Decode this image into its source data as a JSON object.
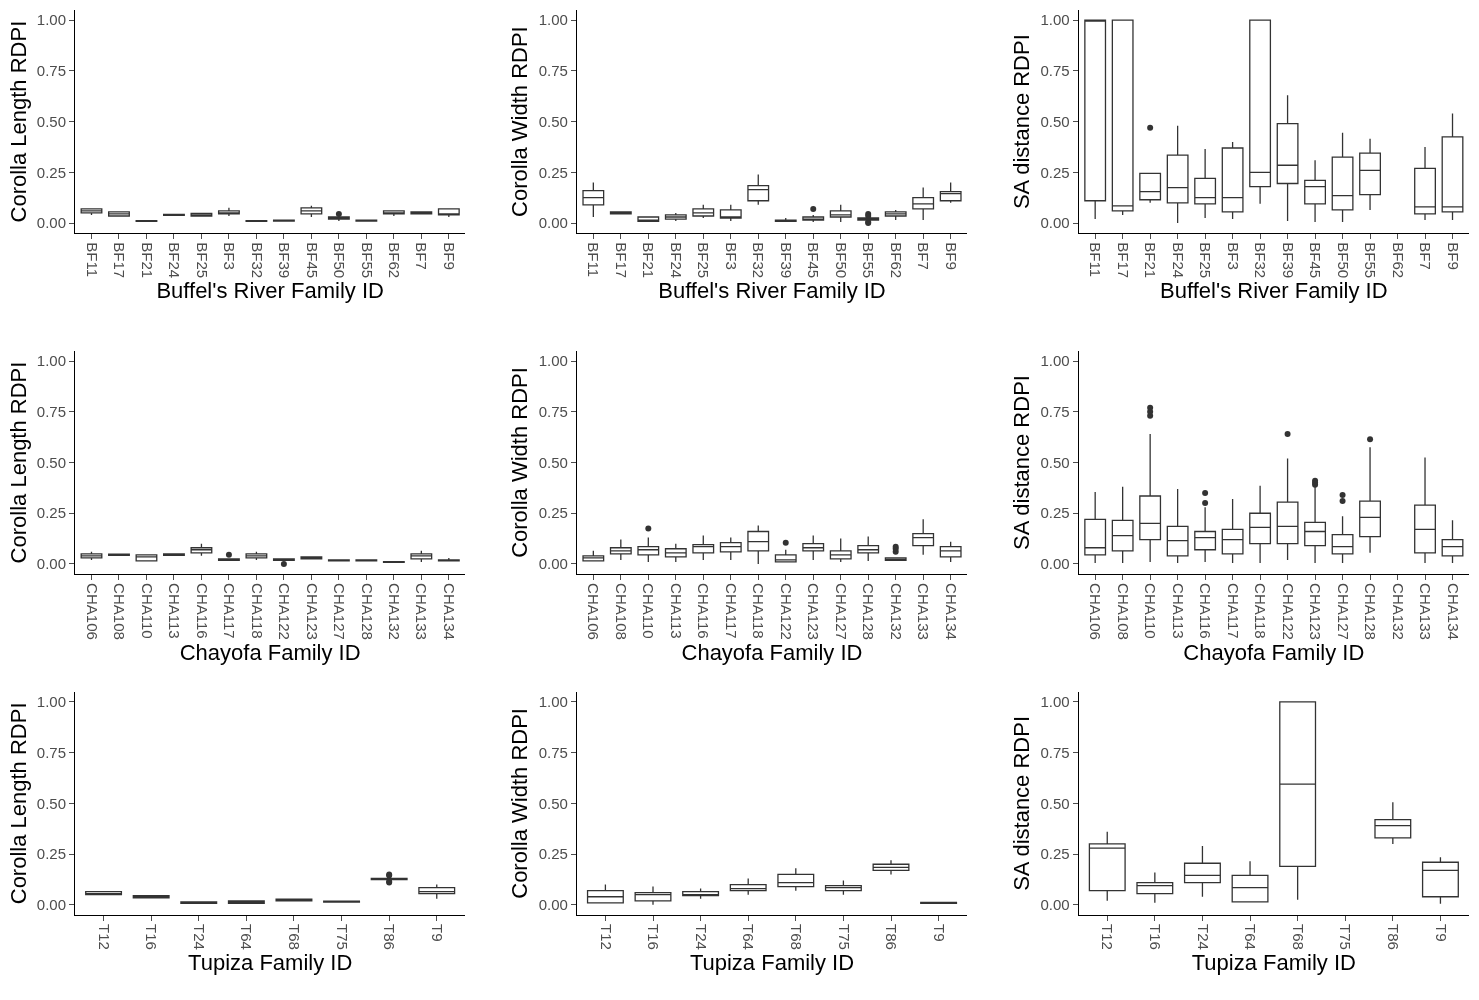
{
  "chart_data": [
    {
      "type": "box",
      "xlabel": "Buffel's River Family ID",
      "ylabel": "Corolla Length RDPI",
      "ylim": [
        -0.05,
        1.05
      ],
      "yticks": [
        {
          "value": 0,
          "label": "0.00"
        },
        {
          "value": 0.25,
          "label": "0.25"
        },
        {
          "value": 0.5,
          "label": "0.50"
        },
        {
          "value": 0.75,
          "label": "0.75"
        },
        {
          "value": 1,
          "label": "1.00"
        }
      ],
      "categories": [
        "BF11",
        "BF17",
        "BF21",
        "BF24",
        "BF25",
        "BF3",
        "BF32",
        "BF39",
        "BF45",
        "BF50",
        "BF55",
        "BF62",
        "BF7",
        "BF9"
      ],
      "boxes": [
        {
          "low": 0.04,
          "q1": 0.05,
          "median": 0.06,
          "q3": 0.07,
          "high": 0.07
        },
        {
          "low": 0.035,
          "q1": 0.035,
          "median": 0.045,
          "q3": 0.055,
          "high": 0.055
        },
        {
          "low": 0.008,
          "q1": 0.008,
          "median": 0.01,
          "q3": 0.012,
          "high": 0.012
        },
        {
          "low": 0.038,
          "q1": 0.038,
          "median": 0.04,
          "q3": 0.043,
          "high": 0.043
        },
        {
          "low": 0.035,
          "q1": 0.035,
          "median": 0.04,
          "q3": 0.048,
          "high": 0.048
        },
        {
          "low": 0.035,
          "q1": 0.045,
          "median": 0.05,
          "q3": 0.06,
          "high": 0.075
        },
        {
          "low": 0.008,
          "q1": 0.008,
          "median": 0.01,
          "q3": 0.012,
          "high": 0.012
        },
        {
          "low": 0.01,
          "q1": 0.01,
          "median": 0.012,
          "q3": 0.015,
          "high": 0.015
        },
        {
          "low": 0.03,
          "q1": 0.045,
          "median": 0.06,
          "q3": 0.075,
          "high": 0.085
        },
        {
          "low": 0.01,
          "q1": 0.02,
          "median": 0.025,
          "q3": 0.03,
          "high": 0.04,
          "outliers": [
            0.045
          ]
        },
        {
          "low": 0.01,
          "q1": 0.01,
          "median": 0.012,
          "q3": 0.015,
          "high": 0.015
        },
        {
          "low": 0.035,
          "q1": 0.045,
          "median": 0.05,
          "q3": 0.06,
          "high": 0.06
        },
        {
          "low": 0.045,
          "q1": 0.045,
          "median": 0.05,
          "q3": 0.055,
          "high": 0.055
        },
        {
          "low": 0.03,
          "q1": 0.04,
          "median": 0.045,
          "q3": 0.07,
          "high": 0.07
        }
      ]
    },
    {
      "type": "box",
      "xlabel": "Buffel's River Family ID",
      "ylabel": "Corolla Width RDPI",
      "ylim": [
        -0.05,
        1.05
      ],
      "yticks": [
        {
          "value": 0,
          "label": "0.00"
        },
        {
          "value": 0.25,
          "label": "0.25"
        },
        {
          "value": 0.5,
          "label": "0.50"
        },
        {
          "value": 0.75,
          "label": "0.75"
        },
        {
          "value": 1,
          "label": "1.00"
        }
      ],
      "categories": [
        "BF11",
        "BF17",
        "BF21",
        "BF24",
        "BF25",
        "BF3",
        "BF32",
        "BF39",
        "BF45",
        "BF50",
        "BF55",
        "BF62",
        "BF7",
        "BF9"
      ],
      "boxes": [
        {
          "low": 0.03,
          "q1": 0.09,
          "median": 0.125,
          "q3": 0.16,
          "high": 0.2
        },
        {
          "low": 0.045,
          "q1": 0.045,
          "median": 0.05,
          "q3": 0.055,
          "high": 0.055
        },
        {
          "low": 0.008,
          "q1": 0.008,
          "median": 0.015,
          "q3": 0.03,
          "high": 0.03
        },
        {
          "low": 0.01,
          "q1": 0.02,
          "median": 0.03,
          "q3": 0.04,
          "high": 0.05
        },
        {
          "low": 0.025,
          "q1": 0.035,
          "median": 0.05,
          "q3": 0.07,
          "high": 0.09
        },
        {
          "low": 0.01,
          "q1": 0.025,
          "median": 0.03,
          "q3": 0.065,
          "high": 0.09
        },
        {
          "low": 0.09,
          "q1": 0.11,
          "median": 0.165,
          "q3": 0.185,
          "high": 0.24
        },
        {
          "low": 0.008,
          "q1": 0.008,
          "median": 0.01,
          "q3": 0.015,
          "high": 0.025
        },
        {
          "low": 0.005,
          "q1": 0.015,
          "median": 0.02,
          "q3": 0.03,
          "high": 0.04,
          "outliers": [
            0.07
          ]
        },
        {
          "low": 0.005,
          "q1": 0.03,
          "median": 0.04,
          "q3": 0.06,
          "high": 0.09
        },
        {
          "low": 0.015,
          "q1": 0.015,
          "median": 0.02,
          "q3": 0.025,
          "high": 0.025,
          "outliers": [
            0.045,
            0.035,
            0.005,
            0
          ]
        },
        {
          "low": 0.015,
          "q1": 0.035,
          "median": 0.045,
          "q3": 0.055,
          "high": 0.065
        },
        {
          "low": 0.015,
          "q1": 0.07,
          "median": 0.095,
          "q3": 0.125,
          "high": 0.175
        },
        {
          "low": 0.1,
          "q1": 0.11,
          "median": 0.145,
          "q3": 0.155,
          "high": 0.2
        }
      ]
    },
    {
      "type": "box",
      "xlabel": "Buffel's River Family ID",
      "ylabel": "SA distance RDPI",
      "ylim": [
        -0.05,
        1.05
      ],
      "yticks": [
        {
          "value": 0,
          "label": "0.00"
        },
        {
          "value": 0.25,
          "label": "0.25"
        },
        {
          "value": 0.5,
          "label": "0.50"
        },
        {
          "value": 0.75,
          "label": "0.75"
        },
        {
          "value": 1,
          "label": "1.00"
        }
      ],
      "categories": [
        "BF11",
        "BF17",
        "BF21",
        "BF24",
        "BF25",
        "BF3",
        "BF32",
        "BF39",
        "BF45",
        "BF50",
        "BF55",
        "BF62",
        "BF7",
        "BF9"
      ],
      "boxes": [
        {
          "low": 0.02,
          "q1": 0.11,
          "median": 1.0,
          "q3": 1.0,
          "high": 1.0
        },
        {
          "low": 0.04,
          "q1": 0.06,
          "median": 0.085,
          "q3": 1.0,
          "high": 1.0
        },
        {
          "low": 0.1,
          "q1": 0.115,
          "median": 0.155,
          "q3": 0.245,
          "high": 0.245,
          "outliers": [
            0.47
          ]
        },
        {
          "low": 0.0,
          "q1": 0.1,
          "median": 0.175,
          "q3": 0.335,
          "high": 0.48
        },
        {
          "low": 0.025,
          "q1": 0.095,
          "median": 0.125,
          "q3": 0.22,
          "high": 0.365
        },
        {
          "low": 0.02,
          "q1": 0.055,
          "median": 0.125,
          "q3": 0.37,
          "high": 0.4
        },
        {
          "low": 0.095,
          "q1": 0.18,
          "median": 0.25,
          "q3": 1.0,
          "high": 1.0
        },
        {
          "low": 0.01,
          "q1": 0.195,
          "median": 0.285,
          "q3": 0.49,
          "high": 0.63
        },
        {
          "low": 0.005,
          "q1": 0.095,
          "median": 0.18,
          "q3": 0.21,
          "high": 0.31
        },
        {
          "low": 0.005,
          "q1": 0.065,
          "median": 0.135,
          "q3": 0.325,
          "high": 0.445
        },
        {
          "low": 0.065,
          "q1": 0.14,
          "median": 0.26,
          "q3": 0.345,
          "high": 0.415
        },
        null,
        {
          "low": 0.015,
          "q1": 0.045,
          "median": 0.08,
          "q3": 0.27,
          "high": 0.375
        },
        {
          "low": 0.015,
          "q1": 0.055,
          "median": 0.08,
          "q3": 0.425,
          "high": 0.54
        }
      ]
    },
    {
      "type": "box",
      "xlabel": "Chayofa Family ID",
      "ylabel": "Corolla Length RDPI",
      "ylim": [
        -0.05,
        1.05
      ],
      "yticks": [
        {
          "value": 0,
          "label": "0.00"
        },
        {
          "value": 0.25,
          "label": "0.25"
        },
        {
          "value": 0.5,
          "label": "0.50"
        },
        {
          "value": 0.75,
          "label": "0.75"
        },
        {
          "value": 1,
          "label": "1.00"
        }
      ],
      "categories": [
        "CHA106",
        "CHA108",
        "CHA110",
        "CHA113",
        "CHA116",
        "CHA117",
        "CHA118",
        "CHA122",
        "CHA123",
        "CHA127",
        "CHA128",
        "CHA132",
        "CHA133",
        "CHA134"
      ],
      "boxes": [
        {
          "low": 0.02,
          "q1": 0.03,
          "median": 0.04,
          "q3": 0.05,
          "high": 0.06
        },
        {
          "low": 0.042,
          "q1": 0.042,
          "median": 0.045,
          "q3": 0.048,
          "high": 0.048
        },
        {
          "low": 0.015,
          "q1": 0.015,
          "median": 0.035,
          "q3": 0.045,
          "high": 0.045
        },
        {
          "low": 0.042,
          "q1": 0.042,
          "median": 0.045,
          "q3": 0.05,
          "high": 0.05
        },
        {
          "low": 0.04,
          "q1": 0.055,
          "median": 0.07,
          "q3": 0.08,
          "high": 0.1
        },
        {
          "low": 0.018,
          "q1": 0.018,
          "median": 0.02,
          "q3": 0.025,
          "high": 0.025,
          "outliers": [
            0.045
          ]
        },
        {
          "low": 0.02,
          "q1": 0.03,
          "median": 0.04,
          "q3": 0.05,
          "high": 0.06
        },
        {
          "low": 0.018,
          "q1": 0.018,
          "median": 0.02,
          "q3": 0.025,
          "high": 0.025,
          "outliers": [
            0.0
          ]
        },
        {
          "low": 0.025,
          "q1": 0.025,
          "median": 0.03,
          "q3": 0.035,
          "high": 0.035
        },
        {
          "low": 0.015,
          "q1": 0.015,
          "median": 0.018,
          "q3": 0.02,
          "high": 0.02
        },
        {
          "low": 0.015,
          "q1": 0.015,
          "median": 0.018,
          "q3": 0.02,
          "high": 0.02
        },
        {
          "low": 0.008,
          "q1": 0.008,
          "median": 0.01,
          "q3": 0.012,
          "high": 0.012
        },
        {
          "low": 0.01,
          "q1": 0.025,
          "median": 0.04,
          "q3": 0.05,
          "high": 0.065
        },
        {
          "low": 0.015,
          "q1": 0.015,
          "median": 0.018,
          "q3": 0.02,
          "high": 0.03
        }
      ]
    },
    {
      "type": "box",
      "xlabel": "Chayofa Family ID",
      "ylabel": "Corolla Width RDPI",
      "ylim": [
        -0.05,
        1.05
      ],
      "yticks": [
        {
          "value": 0,
          "label": "0.00"
        },
        {
          "value": 0.25,
          "label": "0.25"
        },
        {
          "value": 0.5,
          "label": "0.50"
        },
        {
          "value": 0.75,
          "label": "0.75"
        },
        {
          "value": 1,
          "label": "1.00"
        }
      ],
      "categories": [
        "CHA106",
        "CHA108",
        "CHA110",
        "CHA113",
        "CHA116",
        "CHA117",
        "CHA118",
        "CHA122",
        "CHA123",
        "CHA127",
        "CHA128",
        "CHA132",
        "CHA133",
        "CHA134"
      ],
      "boxes": [
        {
          "low": 0.015,
          "q1": 0.015,
          "median": 0.03,
          "q3": 0.04,
          "high": 0.065
        },
        {
          "low": 0.02,
          "q1": 0.05,
          "median": 0.065,
          "q3": 0.08,
          "high": 0.12
        },
        {
          "low": 0.01,
          "q1": 0.045,
          "median": 0.07,
          "q3": 0.085,
          "high": 0.13,
          "outliers": [
            0.175
          ]
        },
        {
          "low": 0.01,
          "q1": 0.035,
          "median": 0.055,
          "q3": 0.075,
          "high": 0.1
        },
        {
          "low": 0.02,
          "q1": 0.055,
          "median": 0.085,
          "q3": 0.095,
          "high": 0.14
        },
        {
          "low": 0.02,
          "q1": 0.06,
          "median": 0.085,
          "q3": 0.105,
          "high": 0.13
        },
        {
          "low": 0.0,
          "q1": 0.065,
          "median": 0.11,
          "q3": 0.16,
          "high": 0.19
        },
        {
          "low": 0.01,
          "q1": 0.01,
          "median": 0.02,
          "q3": 0.045,
          "high": 0.07,
          "outliers": [
            0.105
          ]
        },
        {
          "low": 0.02,
          "q1": 0.065,
          "median": 0.08,
          "q3": 0.1,
          "high": 0.14
        },
        {
          "low": 0.01,
          "q1": 0.025,
          "median": 0.045,
          "q3": 0.065,
          "high": 0.125
        },
        {
          "low": 0.015,
          "q1": 0.055,
          "median": 0.07,
          "q3": 0.09,
          "high": 0.135
        },
        {
          "low": 0.018,
          "q1": 0.018,
          "median": 0.022,
          "q3": 0.03,
          "high": 0.03,
          "outliers": [
            0.06,
            0.075,
            0.085
          ]
        },
        {
          "low": 0.045,
          "q1": 0.09,
          "median": 0.13,
          "q3": 0.15,
          "high": 0.22
        },
        {
          "low": 0.01,
          "q1": 0.035,
          "median": 0.065,
          "q3": 0.085,
          "high": 0.11
        }
      ]
    },
    {
      "type": "box",
      "xlabel": "Chayofa Family ID",
      "ylabel": "SA distance RDPI",
      "ylim": [
        -0.05,
        1.05
      ],
      "yticks": [
        {
          "value": 0,
          "label": "0.00"
        },
        {
          "value": 0.25,
          "label": "0.25"
        },
        {
          "value": 0.5,
          "label": "0.50"
        },
        {
          "value": 0.75,
          "label": "0.75"
        },
        {
          "value": 1,
          "label": "1.00"
        }
      ],
      "categories": [
        "CHA106",
        "CHA108",
        "CHA110",
        "CHA113",
        "CHA116",
        "CHA117",
        "CHA118",
        "CHA122",
        "CHA123",
        "CHA127",
        "CHA128",
        "CHA132",
        "CHA133",
        "CHA134"
      ],
      "boxes": [
        {
          "low": 0.005,
          "q1": 0.045,
          "median": 0.08,
          "q3": 0.22,
          "high": 0.355
        },
        {
          "low": 0.005,
          "q1": 0.065,
          "median": 0.14,
          "q3": 0.215,
          "high": 0.38
        },
        {
          "low": 0.01,
          "q1": 0.12,
          "median": 0.2,
          "q3": 0.335,
          "high": 0.64,
          "outliers": [
            0.73,
            0.75,
            0.77
          ]
        },
        {
          "low": 0.005,
          "q1": 0.04,
          "median": 0.115,
          "q3": 0.185,
          "high": 0.37
        },
        {
          "low": 0.01,
          "q1": 0.07,
          "median": 0.13,
          "q3": 0.16,
          "high": 0.28,
          "outliers": [
            0.3,
            0.35
          ]
        },
        {
          "low": 0.005,
          "q1": 0.05,
          "median": 0.12,
          "q3": 0.17,
          "high": 0.32
        },
        {
          "low": 0.005,
          "q1": 0.1,
          "median": 0.18,
          "q3": 0.25,
          "high": 0.385
        },
        {
          "low": 0.02,
          "q1": 0.1,
          "median": 0.185,
          "q3": 0.305,
          "high": 0.52,
          "outliers": [
            0.64
          ]
        },
        {
          "low": 0.005,
          "q1": 0.09,
          "median": 0.16,
          "q3": 0.205,
          "high": 0.38,
          "outliers": [
            0.39,
            0.4,
            0.41
          ]
        },
        {
          "low": 0.005,
          "q1": 0.05,
          "median": 0.085,
          "q3": 0.145,
          "high": 0.235,
          "outliers": [
            0.31,
            0.34
          ]
        },
        {
          "low": 0.055,
          "q1": 0.135,
          "median": 0.23,
          "q3": 0.31,
          "high": 0.575,
          "outliers": [
            0.615
          ]
        },
        null,
        {
          "low": 0.005,
          "q1": 0.055,
          "median": 0.17,
          "q3": 0.29,
          "high": 0.525
        },
        {
          "low": 0.005,
          "q1": 0.04,
          "median": 0.085,
          "q3": 0.12,
          "high": 0.215
        }
      ]
    },
    {
      "type": "box",
      "xlabel": "Tupiza Family ID",
      "ylabel": "Corolla Length RDPI",
      "ylim": [
        -0.05,
        1.05
      ],
      "yticks": [
        {
          "value": 0,
          "label": "0.00"
        },
        {
          "value": 0.25,
          "label": "0.25"
        },
        {
          "value": 0.5,
          "label": "0.50"
        },
        {
          "value": 0.75,
          "label": "0.75"
        },
        {
          "value": 1,
          "label": "1.00"
        }
      ],
      "categories": [
        "T12",
        "T16",
        "T24",
        "T64",
        "T68",
        "T75",
        "T86",
        "T9"
      ],
      "boxes": [
        {
          "low": 0.05,
          "q1": 0.05,
          "median": 0.055,
          "q3": 0.065,
          "high": 0.065
        },
        {
          "low": 0.035,
          "q1": 0.035,
          "median": 0.04,
          "q3": 0.045,
          "high": 0.045
        },
        {
          "low": 0.008,
          "q1": 0.008,
          "median": 0.01,
          "q3": 0.015,
          "high": 0.015
        },
        {
          "low": 0.008,
          "q1": 0.008,
          "median": 0.012,
          "q3": 0.02,
          "high": 0.02
        },
        {
          "low": 0.02,
          "q1": 0.02,
          "median": 0.025,
          "q3": 0.028,
          "high": 0.028
        },
        {
          "low": 0.013,
          "q1": 0.013,
          "median": 0.015,
          "q3": 0.018,
          "high": 0.018
        },
        {
          "low": 0.125,
          "q1": 0.125,
          "median": 0.13,
          "q3": 0.13,
          "high": 0.13,
          "outliers": [
            0.11,
            0.115,
            0.145,
            0.15
          ]
        },
        {
          "low": 0.03,
          "q1": 0.055,
          "median": 0.065,
          "q3": 0.085,
          "high": 0.1
        }
      ]
    },
    {
      "type": "box",
      "xlabel": "Tupiza Family ID",
      "ylabel": "Corolla Width RDPI",
      "ylim": [
        -0.05,
        1.05
      ],
      "yticks": [
        {
          "value": 0,
          "label": "0.00"
        },
        {
          "value": 0.25,
          "label": "0.25"
        },
        {
          "value": 0.5,
          "label": "0.50"
        },
        {
          "value": 0.75,
          "label": "0.75"
        },
        {
          "value": 1,
          "label": "1.00"
        }
      ],
      "categories": [
        "T12",
        "T16",
        "T24",
        "T64",
        "T68",
        "T75",
        "T86",
        "T9"
      ],
      "boxes": [
        {
          "low": 0.01,
          "q1": 0.01,
          "median": 0.04,
          "q3": 0.07,
          "high": 0.1
        },
        {
          "low": 0.0,
          "q1": 0.02,
          "median": 0.05,
          "q3": 0.06,
          "high": 0.09
        },
        {
          "low": 0.03,
          "q1": 0.045,
          "median": 0.05,
          "q3": 0.065,
          "high": 0.08
        },
        {
          "low": 0.05,
          "q1": 0.07,
          "median": 0.08,
          "q3": 0.1,
          "high": 0.13
        },
        {
          "low": 0.07,
          "q1": 0.09,
          "median": 0.11,
          "q3": 0.15,
          "high": 0.18
        },
        {
          "low": 0.05,
          "q1": 0.07,
          "median": 0.085,
          "q3": 0.095,
          "high": 0.12
        },
        {
          "low": 0.15,
          "q1": 0.17,
          "median": 0.185,
          "q3": 0.2,
          "high": 0.22
        },
        {
          "low": 0.008,
          "q1": 0.008,
          "median": 0.01,
          "q3": 0.012,
          "high": 0.012
        }
      ]
    },
    {
      "type": "box",
      "xlabel": "Tupiza Family ID",
      "ylabel": "SA distance RDPI",
      "ylim": [
        -0.05,
        1.05
      ],
      "yticks": [
        {
          "value": 0,
          "label": "0.00"
        },
        {
          "value": 0.25,
          "label": "0.25"
        },
        {
          "value": 0.5,
          "label": "0.50"
        },
        {
          "value": 0.75,
          "label": "0.75"
        },
        {
          "value": 1,
          "label": "1.00"
        }
      ],
      "categories": [
        "T12",
        "T16",
        "T24",
        "T64",
        "T68",
        "T75",
        "T86",
        "T9"
      ],
      "boxes": [
        {
          "low": 0.02,
          "q1": 0.07,
          "median": 0.28,
          "q3": 0.3,
          "high": 0.36
        },
        {
          "low": 0.01,
          "q1": 0.055,
          "median": 0.095,
          "q3": 0.11,
          "high": 0.16
        },
        {
          "low": 0.04,
          "q1": 0.11,
          "median": 0.145,
          "q3": 0.205,
          "high": 0.29
        },
        {
          "low": 0.015,
          "q1": 0.015,
          "median": 0.085,
          "q3": 0.145,
          "high": 0.215
        },
        {
          "low": 0.025,
          "q1": 0.19,
          "median": 0.595,
          "q3": 1.0,
          "high": 1.0
        },
        null,
        {
          "low": 0.3,
          "q1": 0.33,
          "median": 0.39,
          "q3": 0.42,
          "high": 0.505
        },
        {
          "low": 0.005,
          "q1": 0.04,
          "median": 0.17,
          "q3": 0.21,
          "high": 0.235
        }
      ]
    }
  ]
}
